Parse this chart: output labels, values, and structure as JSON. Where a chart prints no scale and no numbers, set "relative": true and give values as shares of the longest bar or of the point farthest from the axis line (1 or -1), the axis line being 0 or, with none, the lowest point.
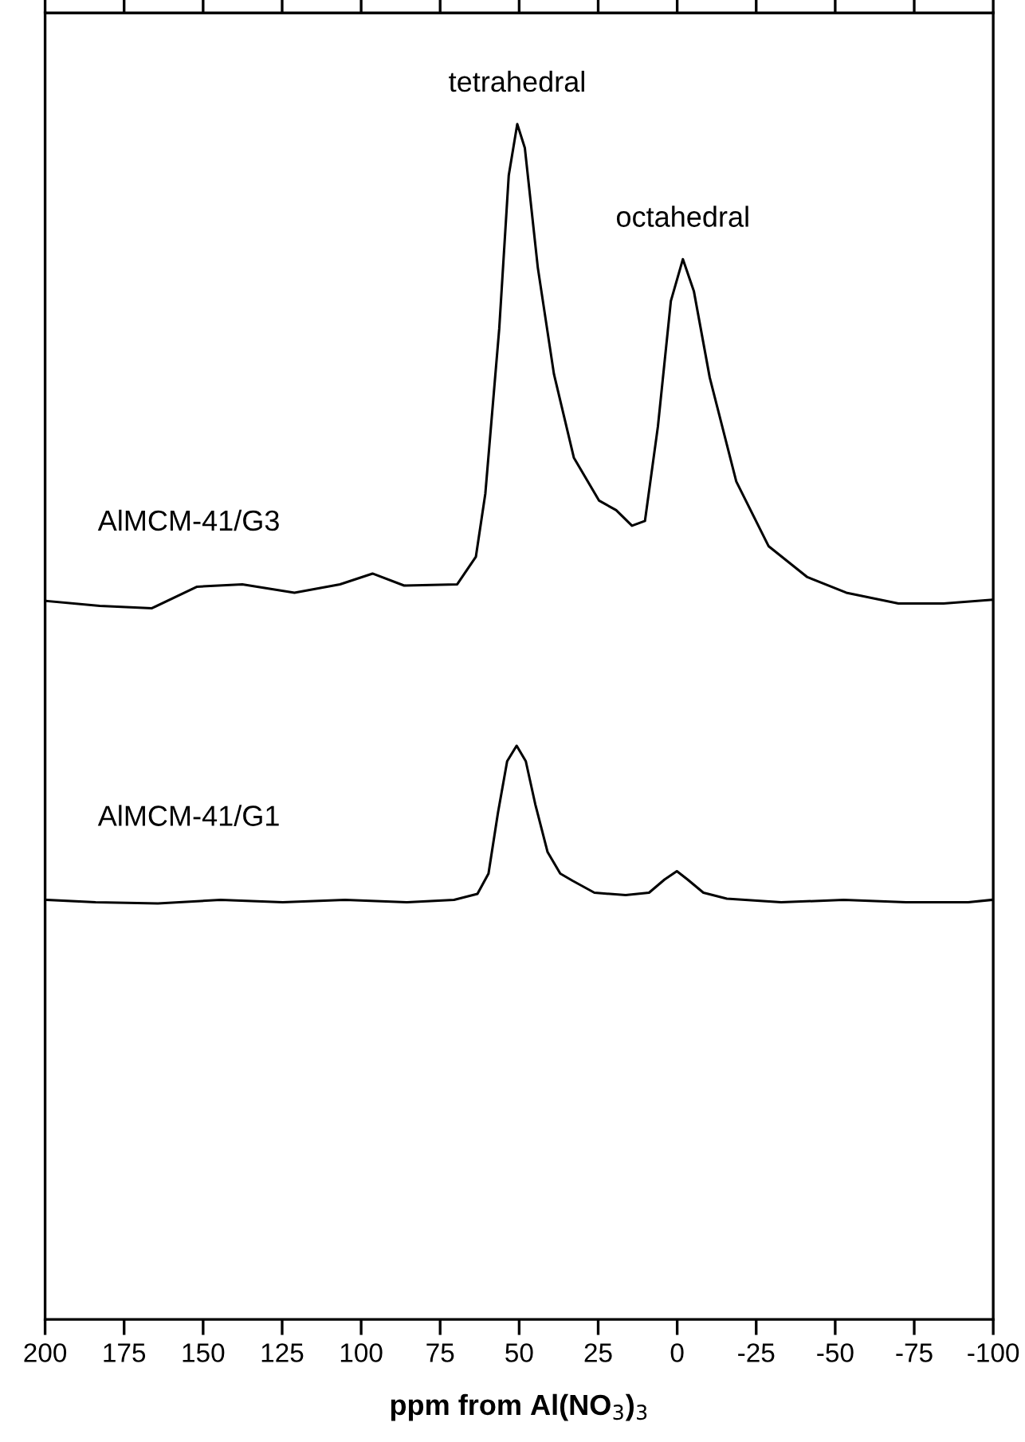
{
  "chart_data": {
    "type": "line",
    "relative": true,
    "xlabel": "ppm from Al(NO$_{3}$)$_{3}$",
    "xlim": [
      200,
      -100
    ],
    "xticks": [
      200,
      175,
      150,
      125,
      100,
      75,
      50,
      25,
      0,
      -25,
      -50,
      -75,
      -100
    ],
    "tick_labels": "x",
    "grid": false,
    "legend": false,
    "marker": "none",
    "line_style": "solid",
    "annotations": [
      {
        "text": "tetrahedral",
        "x": 50.6,
        "y": 1.0
      },
      {
        "text": "octahedral",
        "x": -1.8,
        "y": 0.887
      }
    ],
    "series": [
      {
        "name": "AlMCM-41/G3",
        "color": "#000000",
        "x": [
          199.3,
          182.7,
          166.2,
          151.9,
          137.6,
          121.1,
          106.7,
          96.4,
          86.4,
          69.6,
          63.7,
          60.7,
          56.3,
          53.3,
          50.6,
          48.2,
          44.1,
          39.0,
          32.7,
          24.7,
          19.3,
          14.3,
          10.2,
          6.1,
          2.0,
          -1.8,
          -5.3,
          -10.3,
          -18.7,
          -28.9,
          -41.2,
          -53.5,
          -70.0,
          -84.3,
          -99.5
        ],
        "values": [
          0.601,
          0.597,
          0.595,
          0.613,
          0.615,
          0.608,
          0.615,
          0.624,
          0.614,
          0.615,
          0.638,
          0.691,
          0.829,
          0.957,
          1.0,
          0.98,
          0.88,
          0.791,
          0.721,
          0.685,
          0.677,
          0.664,
          0.668,
          0.747,
          0.852,
          0.887,
          0.86,
          0.788,
          0.701,
          0.647,
          0.621,
          0.608,
          0.599,
          0.599,
          0.602
        ]
      },
      {
        "name": "AlMCM-41/G1",
        "color": "#000000",
        "x": [
          199.3,
          184.0,
          164.3,
          144.5,
          124.8,
          105.1,
          85.4,
          70.6,
          63.2,
          59.7,
          56.7,
          53.8,
          50.8,
          47.9,
          44.9,
          41.0,
          37.0,
          33.1,
          26.2,
          16.3,
          8.9,
          4.0,
          0.1,
          -3.3,
          -8.3,
          -15.7,
          -32.9,
          -52.7,
          -72.4,
          -92.1,
          -99.5
        ],
        "values": [
          0.351,
          0.349,
          0.348,
          0.351,
          0.349,
          0.351,
          0.349,
          0.351,
          0.356,
          0.373,
          0.424,
          0.467,
          0.48,
          0.467,
          0.431,
          0.391,
          0.373,
          0.367,
          0.357,
          0.355,
          0.357,
          0.368,
          0.375,
          0.368,
          0.357,
          0.352,
          0.349,
          0.351,
          0.349,
          0.349,
          0.351
        ]
      }
    ]
  }
}
